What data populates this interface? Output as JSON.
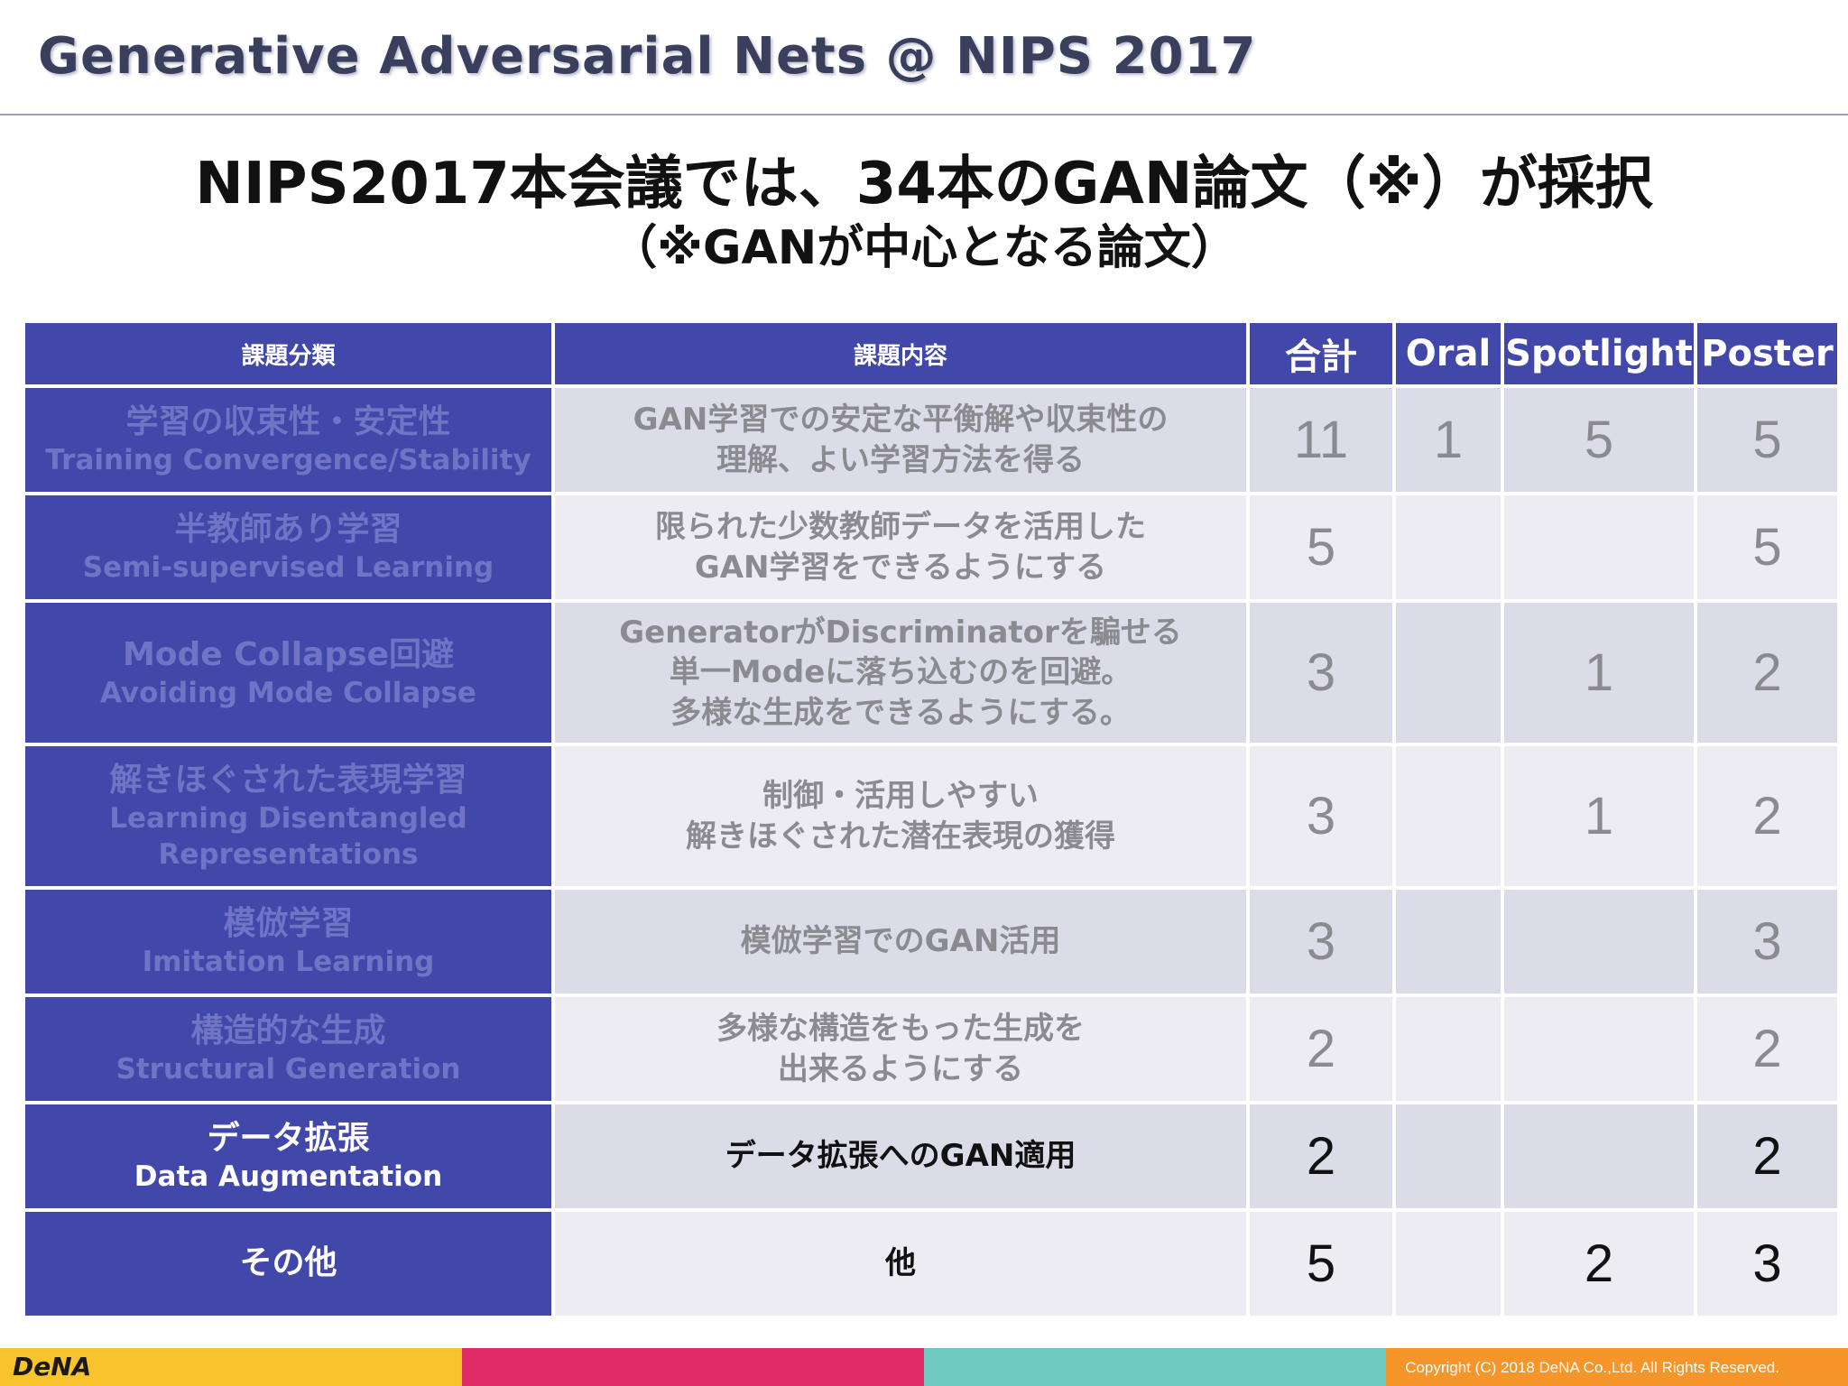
{
  "header": {
    "title": "Generative Adversarial Nets @ NIPS 2017"
  },
  "headline": "NIPS2017本会議では、34本のGAN論文（※）が採択",
  "subline": "（※GANが中心となる論文）",
  "table": {
    "columns": [
      "課題分類",
      "課題内容",
      "合計",
      "Oral",
      "Spotlight",
      "Poster"
    ],
    "rows": [
      {
        "category_ja": "学習の収束性・安定性",
        "category_en": [
          "Training Convergence/Stability"
        ],
        "description": [
          "GAN学習での安定な平衡解や収束性の",
          "理解、よい学習方法を得る"
        ],
        "total": "11",
        "oral": "1",
        "spotlight": "5",
        "poster": "5"
      },
      {
        "category_ja": "半教師あり学習",
        "category_en": [
          "Semi-supervised Learning"
        ],
        "description": [
          "限られた少数教師データを活用した",
          "GAN学習をできるようにする"
        ],
        "total": "5",
        "oral": "",
        "spotlight": "",
        "poster": "5"
      },
      {
        "category_ja": "Mode Collapse回避",
        "category_en": [
          "Avoiding Mode Collapse"
        ],
        "description": [
          "GeneratorがDiscriminatorを騙せる",
          "単一Modeに落ち込むのを回避。",
          "多様な生成をできるようにする。"
        ],
        "total": "3",
        "oral": "",
        "spotlight": "1",
        "poster": "2"
      },
      {
        "category_ja": "解きほぐされた表現学習",
        "category_en": [
          "Learning Disentangled",
          "Representations"
        ],
        "description": [
          "制御・活用しやすい",
          "解きほぐされた潜在表現の獲得"
        ],
        "total": "3",
        "oral": "",
        "spotlight": "1",
        "poster": "2"
      },
      {
        "category_ja": "模倣学習",
        "category_en": [
          "Imitation Learning"
        ],
        "description": [
          "模倣学習でのGAN活用"
        ],
        "total": "3",
        "oral": "",
        "spotlight": "",
        "poster": "3"
      },
      {
        "category_ja": "構造的な生成",
        "category_en": [
          "Structural Generation"
        ],
        "description": [
          "多様な構造をもった生成を",
          "出来るようにする"
        ],
        "total": "2",
        "oral": "",
        "spotlight": "",
        "poster": "2"
      },
      {
        "category_ja": "データ拡張",
        "category_en": [
          "Data Augmentation"
        ],
        "description": [
          "データ拡張へのGAN適用"
        ],
        "total": "2",
        "oral": "",
        "spotlight": "",
        "poster": "2"
      },
      {
        "category_ja": "その他",
        "category_en": [],
        "description": [
          "他"
        ],
        "total": "5",
        "oral": "",
        "spotlight": "2",
        "poster": "3"
      }
    ]
  },
  "footer": {
    "logo": "DeNA",
    "copyright": "Copyright (C) 2018 DeNA Co.,Ltd. All Rights Reserved."
  },
  "colors": {
    "header_cell": "#4248aa",
    "dim_text": "#6f75c4",
    "footer_segments": [
      "#f8c32d",
      "#e02a67",
      "#6ec9c0",
      "#f5952a"
    ]
  }
}
